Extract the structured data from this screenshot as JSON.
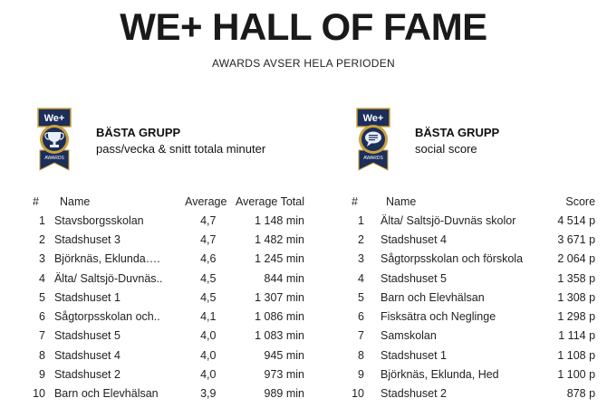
{
  "page": {
    "title": "WE+ HALL OF FAME",
    "subtitle": "AWARDS AVSER HELA PERIODEN"
  },
  "colors": {
    "badge_navy": "#1c2e5a",
    "badge_gold": "#c9a23c",
    "badge_light": "#e8eef6"
  },
  "left": {
    "badge": {
      "brand": "We+",
      "ribbon": "AWARDS",
      "icon": "trophy-icon"
    },
    "heading": "BÄSTA GRUPP",
    "subheading": "pass/vecka & snitt totala minuter",
    "columns": {
      "rank": "#",
      "name": "Name",
      "average": "Average",
      "average_total": "Average Total"
    },
    "rows": [
      {
        "rank": "1",
        "name": "Stavsborgsskolan",
        "average": "4,7",
        "average_total": "1 148 min"
      },
      {
        "rank": "2",
        "name": "Stadshuset 3",
        "average": "4,7",
        "average_total": "1 482 min"
      },
      {
        "rank": "3",
        "name": "Björknäs, Eklunda….",
        "average": "4,6",
        "average_total": "1 245 min"
      },
      {
        "rank": "4",
        "name": "Älta/ Saltsjö-Duvnäs..",
        "average": "4,5",
        "average_total": "844 min"
      },
      {
        "rank": "5",
        "name": "Stadshuset 1",
        "average": "4,5",
        "average_total": "1 307 min"
      },
      {
        "rank": "6",
        "name": "Sågtorpsskolan och..",
        "average": "4,1",
        "average_total": "1 086 min"
      },
      {
        "rank": "7",
        "name": "Stadshuset 5",
        "average": "4,0",
        "average_total": "1 083 min"
      },
      {
        "rank": "8",
        "name": "Stadshuset 4",
        "average": "4,0",
        "average_total": "945 min"
      },
      {
        "rank": "9",
        "name": "Stadshuset 2",
        "average": "4,0",
        "average_total": "973 min"
      },
      {
        "rank": "10",
        "name": "Barn och Elevhälsan",
        "average": "3,9",
        "average_total": "989 min"
      }
    ]
  },
  "right": {
    "badge": {
      "brand": "We+",
      "ribbon": "AWARDS",
      "icon": "speech-bubble-icon"
    },
    "heading": "BÄSTA GRUPP",
    "subheading": "social score",
    "columns": {
      "rank": "#",
      "name": "Name",
      "score": "Score"
    },
    "rows": [
      {
        "rank": "1",
        "name": "Älta/ Saltsjö-Duvnäs skolor",
        "score": "4 514 p"
      },
      {
        "rank": "2",
        "name": "Stadshuset 4",
        "score": "3 671 p"
      },
      {
        "rank": "3",
        "name": "Sågtorpsskolan och förskola",
        "score": "2 064 p"
      },
      {
        "rank": "4",
        "name": "Stadshuset 5",
        "score": "1 358 p"
      },
      {
        "rank": "5",
        "name": "Barn och Elevhälsan",
        "score": "1 308 p"
      },
      {
        "rank": "6",
        "name": "Fisksätra och Neglinge",
        "score": "1 298 p"
      },
      {
        "rank": "7",
        "name": "Samskolan",
        "score": "1 114 p"
      },
      {
        "rank": "8",
        "name": "Stadshuset 1",
        "score": "1 108 p"
      },
      {
        "rank": "9",
        "name": "Björknäs, Eklunda, Hed",
        "score": "1 100 p"
      },
      {
        "rank": "10",
        "name": "Stadshuset 2",
        "score": "878 p"
      }
    ]
  }
}
